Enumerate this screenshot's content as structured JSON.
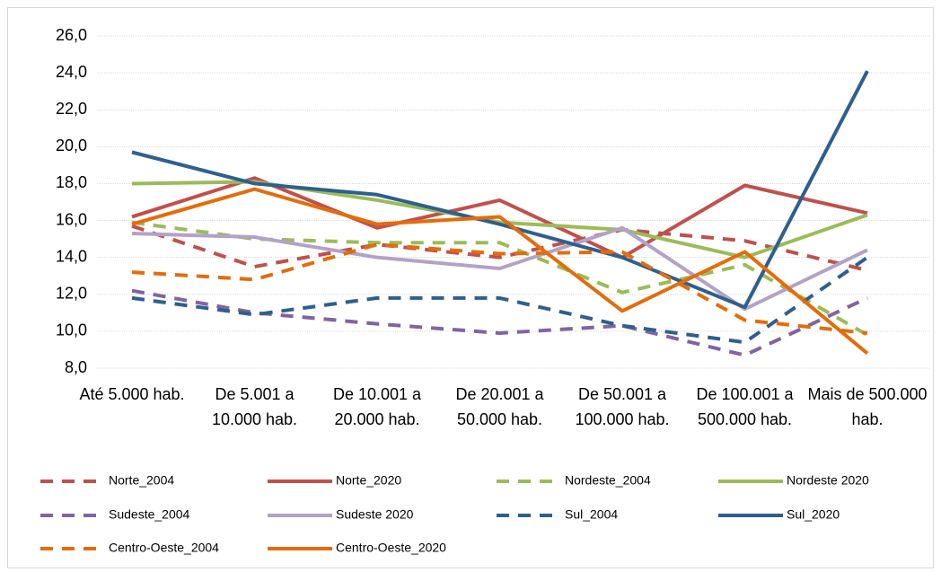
{
  "chart_data": {
    "type": "line",
    "categories": [
      "Até 5.000 hab.",
      "De 5.001 a 10.000 hab.",
      "De 10.001 a 20.000 hab.",
      "De 20.001 a 50.000 hab.",
      "De 50.001 a 100.000 hab.",
      "De 100.001 a 500.000 hab.",
      "Mais de 500.000 hab."
    ],
    "ylim": [
      8,
      26
    ],
    "yticks": [
      {
        "value": 8,
        "label": "8,0"
      },
      {
        "value": 10,
        "label": "10,0"
      },
      {
        "value": 12,
        "label": "12,0"
      },
      {
        "value": 14,
        "label": "14,0"
      },
      {
        "value": 16,
        "label": "16,0"
      },
      {
        "value": 18,
        "label": "18,0"
      },
      {
        "value": 20,
        "label": "20,0"
      },
      {
        "value": 22,
        "label": "22,0"
      },
      {
        "value": 24,
        "label": "24,0"
      },
      {
        "value": 26,
        "label": "26,0"
      }
    ],
    "grid": true,
    "series": [
      {
        "name": "Norte_2004",
        "color": "#c0504d",
        "dashed": true,
        "values": [
          15.7,
          13.5,
          14.7,
          14.0,
          15.5,
          14.9,
          13.3
        ]
      },
      {
        "name": "Norte_2020",
        "color": "#c0504d",
        "dashed": false,
        "values": [
          16.2,
          18.3,
          15.6,
          17.1,
          14.0,
          17.9,
          16.4
        ]
      },
      {
        "name": "Nordeste_2004",
        "color": "#9bbb59",
        "dashed": true,
        "values": [
          15.9,
          15.0,
          14.8,
          14.8,
          12.1,
          13.6,
          9.8
        ]
      },
      {
        "name": "Nordeste 2020",
        "color": "#9bbb59",
        "dashed": false,
        "values": [
          18.0,
          18.1,
          17.1,
          15.9,
          15.5,
          14.0,
          16.3
        ]
      },
      {
        "name": "Sudeste_2004",
        "color": "#8064a2",
        "dashed": true,
        "values": [
          12.2,
          11.0,
          10.4,
          9.9,
          10.3,
          8.7,
          11.8
        ]
      },
      {
        "name": "Sudeste 2020",
        "color": "#b3a2c7",
        "dashed": false,
        "values": [
          15.3,
          15.1,
          14.0,
          13.4,
          15.6,
          11.2,
          14.4
        ]
      },
      {
        "name": "Sul_2004",
        "color": "#2e5f8e",
        "dashed": true,
        "values": [
          11.8,
          10.9,
          11.8,
          11.8,
          10.3,
          9.4,
          14.0
        ]
      },
      {
        "name": "Sul_2020",
        "color": "#2e5f8e",
        "dashed": false,
        "values": [
          19.7,
          18.0,
          17.4,
          15.8,
          14.0,
          11.3,
          24.1
        ]
      },
      {
        "name": "Centro-Oeste_2004",
        "color": "#e46c0a",
        "dashed": true,
        "values": [
          13.2,
          12.8,
          14.7,
          14.2,
          14.3,
          10.6,
          9.9
        ]
      },
      {
        "name": "Centro-Oeste_2020",
        "color": "#e46c0a",
        "dashed": false,
        "values": [
          15.8,
          17.7,
          15.8,
          16.2,
          11.1,
          14.3,
          8.8
        ]
      }
    ]
  }
}
